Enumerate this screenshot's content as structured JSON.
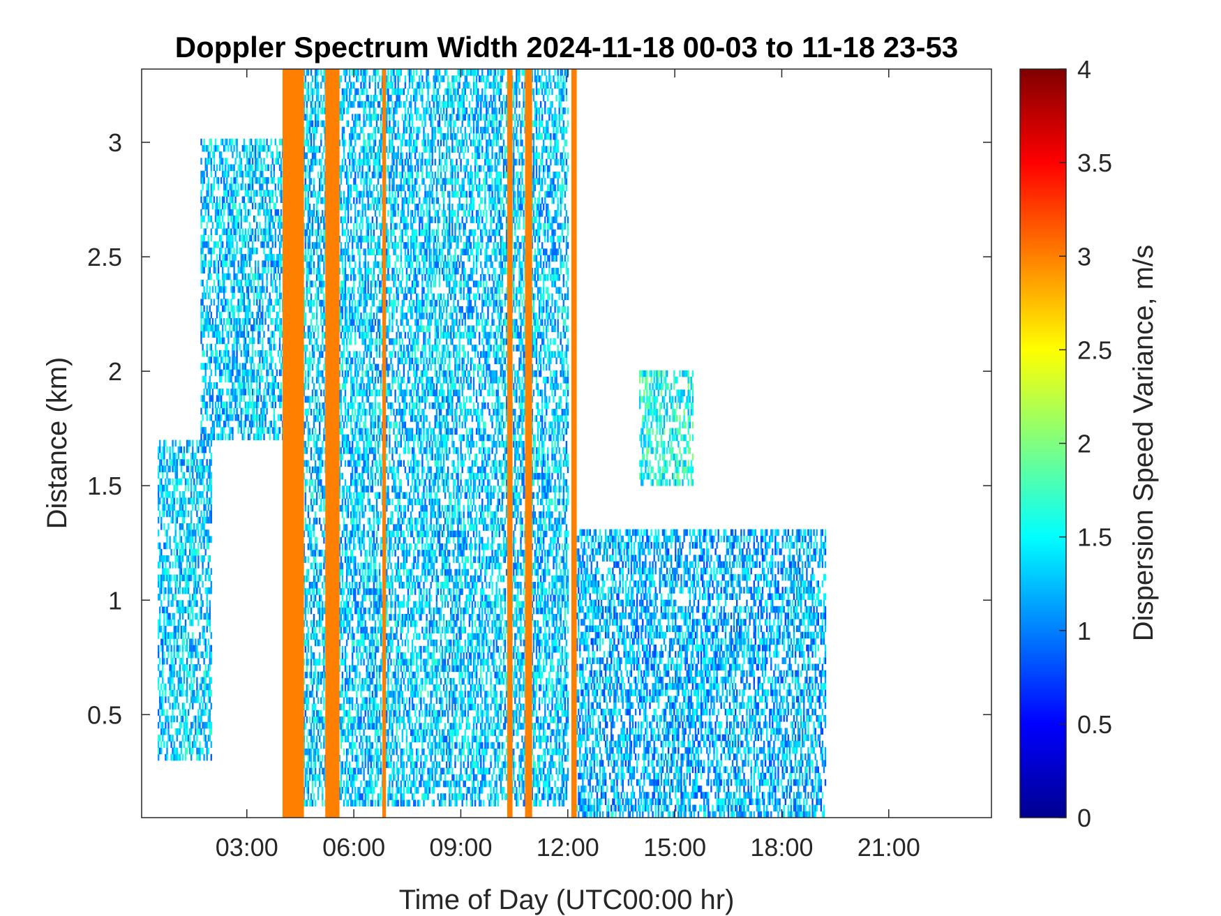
{
  "chart_data": {
    "type": "heatmap",
    "title": "Doppler Spectrum Width 2024-11-18 00-03 to 11-18 23-53",
    "xlabel": "Time of Day (UTC00:00 hr)",
    "ylabel": "Distance (km)",
    "colorbar_label": "Dispersion Speed Variance, m/s",
    "colormap": "jet",
    "xlim_hours": [
      0.05,
      23.88
    ],
    "ylim_km": [
      0.05,
      3.32
    ],
    "clim": [
      0,
      4
    ],
    "x_ticks": [
      {
        "hour": 3,
        "label": "03:00"
      },
      {
        "hour": 6,
        "label": "06:00"
      },
      {
        "hour": 9,
        "label": "09:00"
      },
      {
        "hour": 12,
        "label": "12:00"
      },
      {
        "hour": 15,
        "label": "15:00"
      },
      {
        "hour": 18,
        "label": "18:00"
      },
      {
        "hour": 21,
        "label": "21:00"
      }
    ],
    "y_ticks": [
      {
        "km": 0.5,
        "label": "0.5"
      },
      {
        "km": 1,
        "label": "1"
      },
      {
        "km": 1.5,
        "label": "1.5"
      },
      {
        "km": 2,
        "label": "2"
      },
      {
        "km": 2.5,
        "label": "2.5"
      },
      {
        "km": 3,
        "label": "3"
      }
    ],
    "colorbar_ticks": [
      {
        "value": 0,
        "label": "0"
      },
      {
        "value": 0.5,
        "label": "0.5"
      },
      {
        "value": 1,
        "label": "1"
      },
      {
        "value": 1.5,
        "label": "1.5"
      },
      {
        "value": 2,
        "label": "2"
      },
      {
        "value": 2.5,
        "label": "2.5"
      },
      {
        "value": 3,
        "label": "3"
      },
      {
        "value": 3.5,
        "label": "3.5"
      },
      {
        "value": 4,
        "label": "4"
      }
    ],
    "echo_regions": [
      {
        "name": "early-morning low layer",
        "time_hours": [
          0.5,
          2.0
        ],
        "height_km": [
          0.3,
          1.7
        ],
        "typical_value": 1.3
      },
      {
        "name": "early-morning upper layer",
        "time_hours": [
          1.7,
          4.0
        ],
        "height_km": [
          1.7,
          3.0
        ],
        "typical_value": 1.3
      },
      {
        "name": "morning descending layer",
        "time_hours": [
          4.5,
          12.0
        ],
        "height_km": [
          0.1,
          3.32
        ],
        "typical_value": 1.3
      },
      {
        "name": "midday mid-level cluster",
        "time_hours": [
          14.0,
          15.5
        ],
        "height_km": [
          1.5,
          2.0
        ],
        "typical_value": 1.6
      },
      {
        "name": "afternoon boundary layer",
        "time_hours": [
          12.2,
          19.2
        ],
        "height_km": [
          0.05,
          1.3
        ],
        "typical_value": 1.2
      }
    ],
    "saturated_columns": [
      {
        "time_hours": [
          4.0,
          4.6
        ],
        "value": 3.0
      },
      {
        "time_hours": [
          5.2,
          5.6
        ],
        "value": 3.0
      },
      {
        "time_hours": [
          6.8,
          6.9
        ],
        "value": 3.0
      },
      {
        "time_hours": [
          10.3,
          10.45
        ],
        "value": 3.0
      },
      {
        "time_hours": [
          10.8,
          11.0
        ],
        "value": 3.0
      },
      {
        "time_hours": [
          12.1,
          12.25
        ],
        "value": 3.0
      }
    ]
  }
}
